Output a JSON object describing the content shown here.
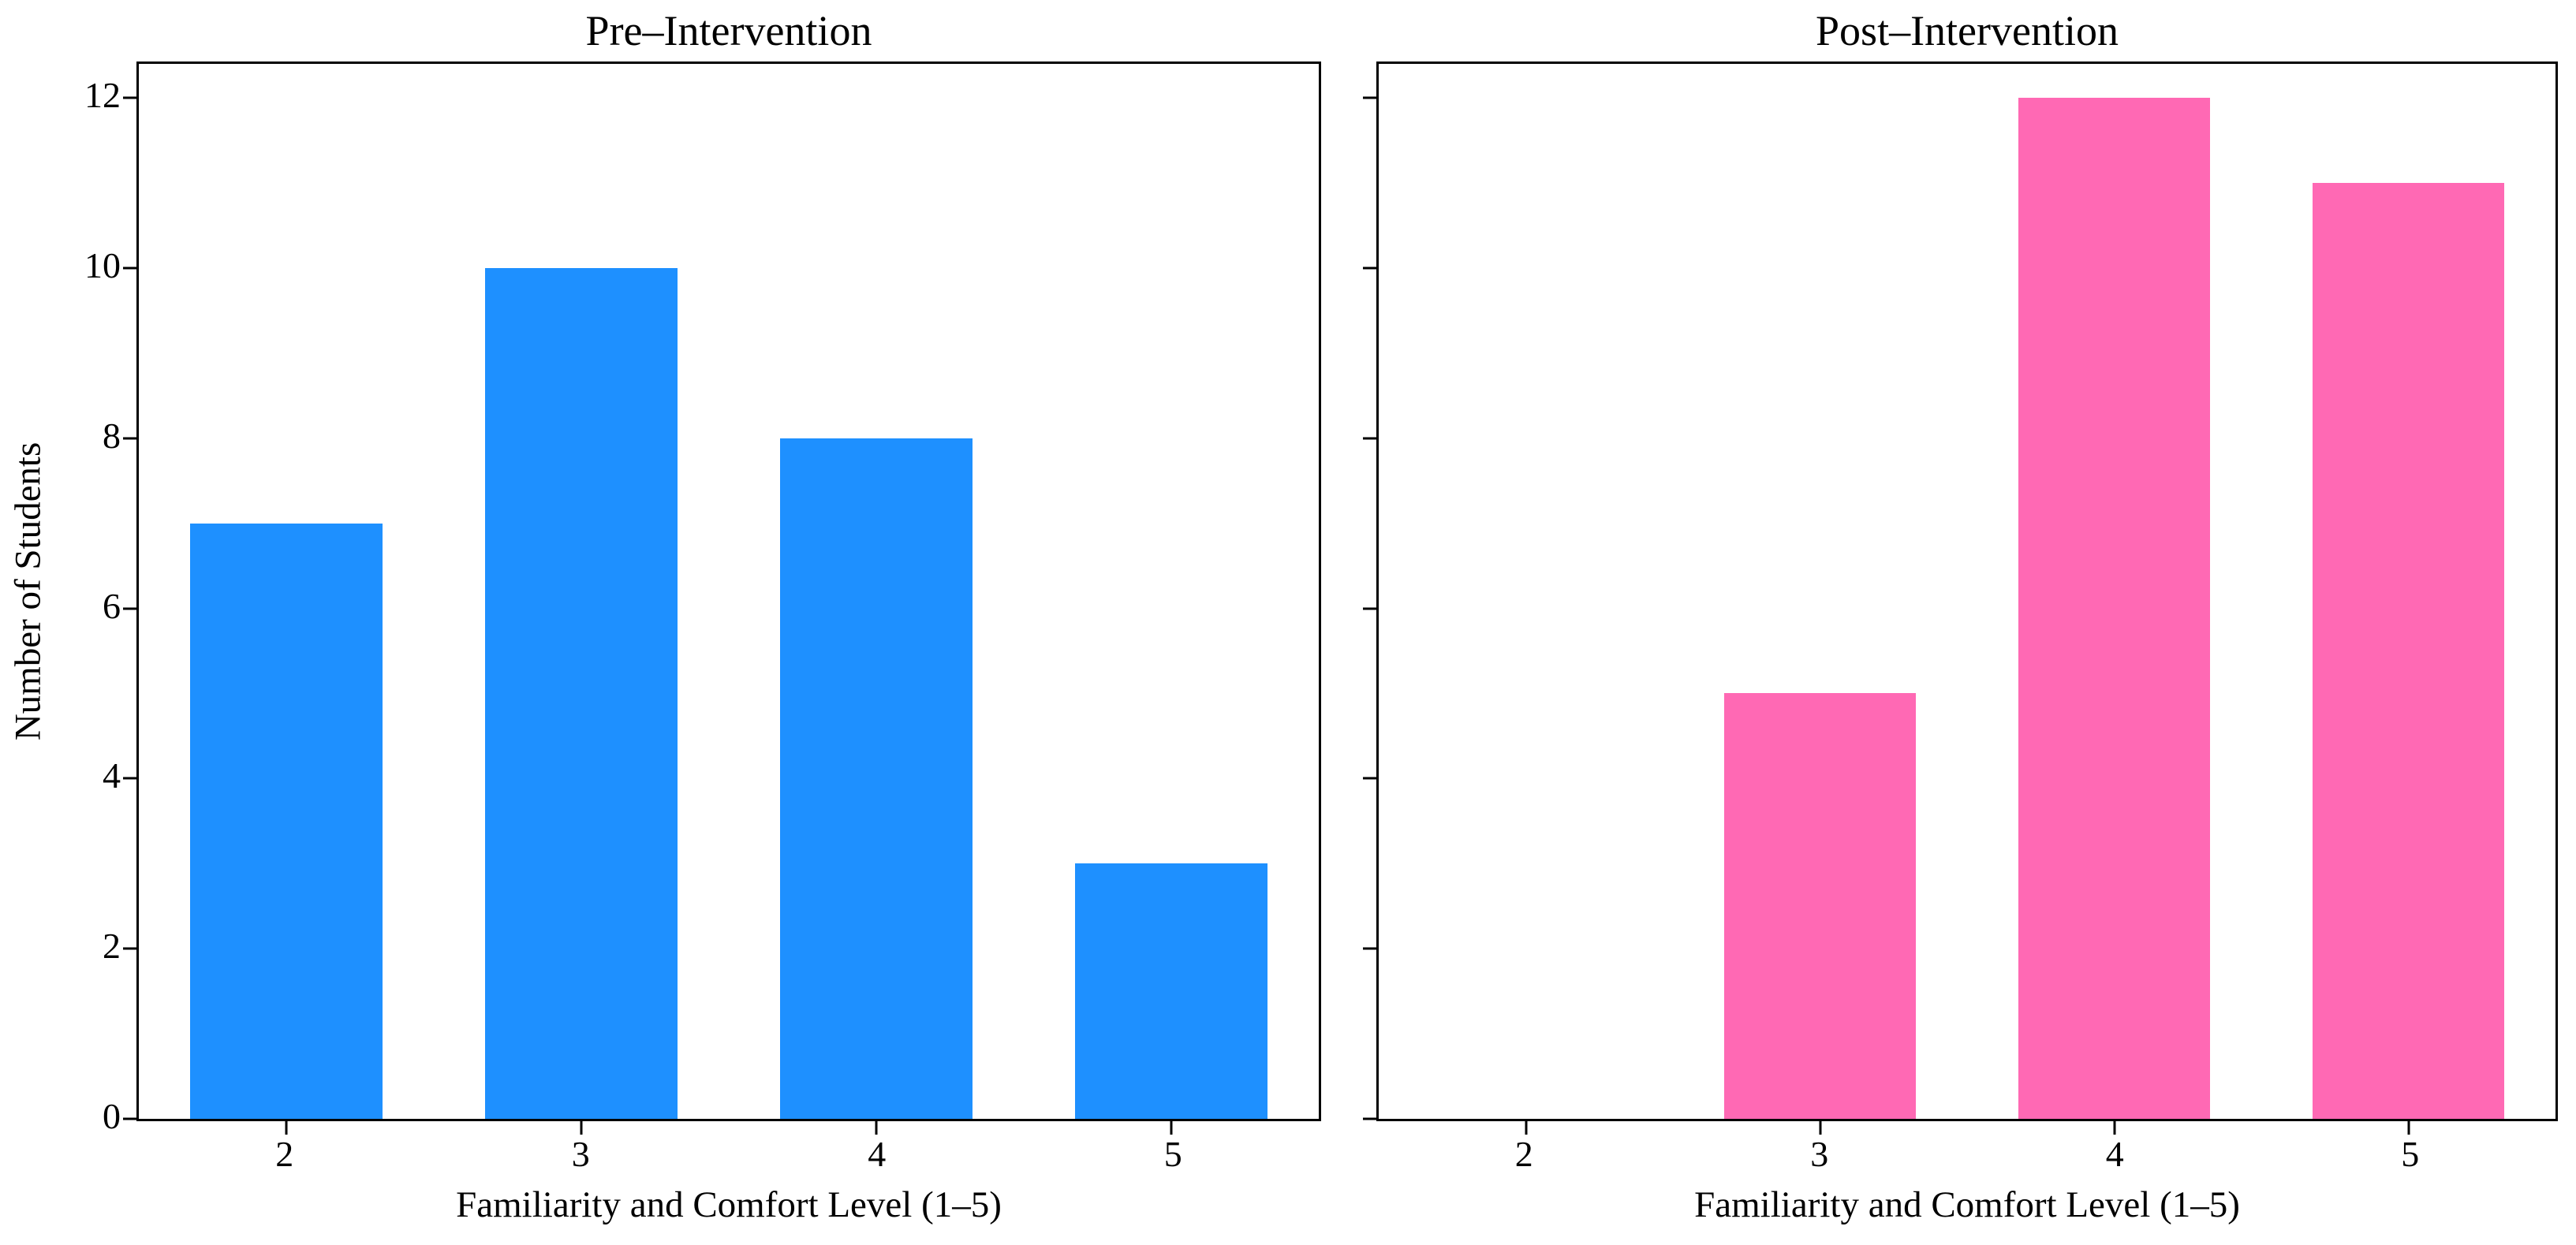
{
  "chart_data": [
    {
      "type": "bar",
      "title": "Pre–Intervention",
      "xlabel": "Familiarity and Comfort Level (1–5)",
      "ylabel": "Number of Students",
      "x": [
        2,
        3,
        4,
        5
      ],
      "categories": [
        "2",
        "3",
        "4",
        "5"
      ],
      "values": [
        7,
        10,
        8,
        3
      ],
      "bar_color": "#1E90FF",
      "bar_width": 0.65,
      "xlim": [
        1.5,
        5.5
      ],
      "ylim": [
        0,
        12.4
      ],
      "yticks": [
        0,
        2,
        4,
        6,
        8,
        10,
        12
      ],
      "yticklabels": [
        "0",
        "2",
        "4",
        "6",
        "8",
        "10",
        "12"
      ],
      "grid": false,
      "legend": null
    },
    {
      "type": "bar",
      "title": "Post–Intervention",
      "xlabel": "Familiarity and Comfort Level (1–5)",
      "ylabel": "",
      "x": [
        2,
        3,
        4,
        5
      ],
      "categories": [
        "2",
        "3",
        "4",
        "5"
      ],
      "values": [
        0,
        5,
        12,
        11
      ],
      "bar_color": "#FF69B4",
      "bar_width": 0.65,
      "xlim": [
        1.5,
        5.5
      ],
      "ylim": [
        0,
        12.4
      ],
      "yticks": [
        0,
        2,
        4,
        6,
        8,
        10,
        12
      ],
      "yticklabels": [],
      "grid": false,
      "legend": null
    }
  ]
}
